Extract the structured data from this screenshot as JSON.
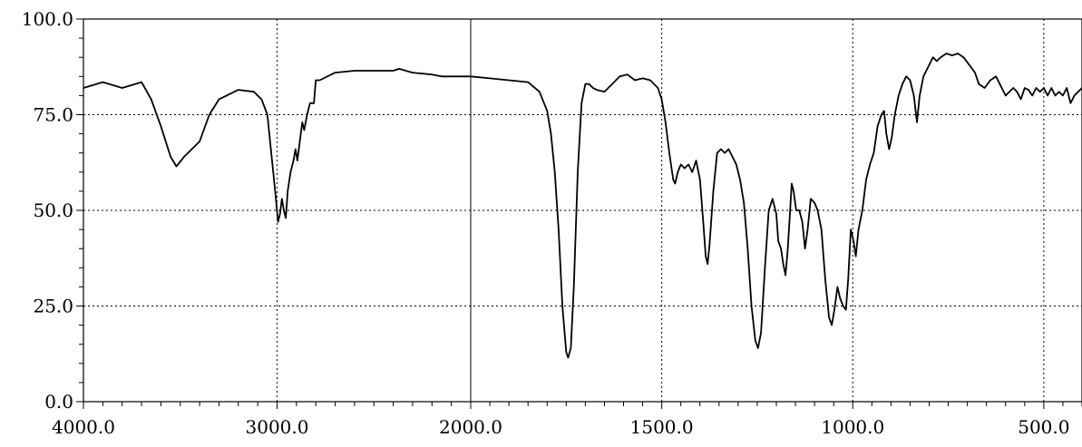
{
  "chart_data": {
    "type": "line",
    "title": "",
    "xlabel": "",
    "ylabel": "",
    "xlim": [
      4000,
      400
    ],
    "ylim": [
      0,
      100
    ],
    "x_scale": "piecewise: 4000-2000 and 2000-400 (2x expanded below 2000)",
    "grid": true,
    "x_ticks": [
      4000,
      3000,
      2000,
      1500,
      1000,
      500
    ],
    "x_tick_labels": [
      "4000.0",
      "3000.0",
      "2000.0",
      "1500.0",
      "1000.0",
      "500.0"
    ],
    "y_ticks": [
      0,
      25,
      50,
      75,
      100
    ],
    "y_tick_labels": [
      "0.0",
      "25.0",
      "50.0",
      "75.0",
      "100.0"
    ],
    "series": [
      {
        "color": "#000000",
        "points": [
          [
            4000,
            82
          ],
          [
            3900,
            83.5
          ],
          [
            3800,
            82
          ],
          [
            3700,
            83.5
          ],
          [
            3650,
            79
          ],
          [
            3600,
            72
          ],
          [
            3550,
            64
          ],
          [
            3520,
            61.5
          ],
          [
            3480,
            64
          ],
          [
            3400,
            68
          ],
          [
            3350,
            75
          ],
          [
            3300,
            79
          ],
          [
            3200,
            81.5
          ],
          [
            3120,
            81
          ],
          [
            3080,
            79
          ],
          [
            3050,
            75
          ],
          [
            3030,
            65
          ],
          [
            3010,
            55
          ],
          [
            2995,
            47
          ],
          [
            2985,
            49
          ],
          [
            2975,
            53
          ],
          [
            2965,
            50
          ],
          [
            2955,
            48
          ],
          [
            2945,
            55
          ],
          [
            2930,
            60
          ],
          [
            2915,
            63
          ],
          [
            2905,
            66
          ],
          [
            2895,
            63
          ],
          [
            2880,
            69
          ],
          [
            2870,
            73
          ],
          [
            2860,
            71
          ],
          [
            2845,
            75
          ],
          [
            2830,
            78
          ],
          [
            2810,
            78
          ],
          [
            2800,
            84
          ],
          [
            2780,
            84
          ],
          [
            2700,
            86
          ],
          [
            2600,
            86.5
          ],
          [
            2500,
            86.5
          ],
          [
            2400,
            86.5
          ],
          [
            2370,
            87
          ],
          [
            2300,
            86
          ],
          [
            2200,
            85.5
          ],
          [
            2150,
            85
          ],
          [
            2100,
            85
          ],
          [
            2000,
            85
          ],
          [
            1950,
            84.5
          ],
          [
            1900,
            84
          ],
          [
            1850,
            83.5
          ],
          [
            1820,
            81
          ],
          [
            1800,
            76
          ],
          [
            1790,
            70
          ],
          [
            1780,
            60
          ],
          [
            1770,
            45
          ],
          [
            1760,
            25
          ],
          [
            1750,
            13
          ],
          [
            1745,
            11.5
          ],
          [
            1738,
            14
          ],
          [
            1730,
            30
          ],
          [
            1720,
            60
          ],
          [
            1710,
            78
          ],
          [
            1700,
            83
          ],
          [
            1690,
            83
          ],
          [
            1680,
            82
          ],
          [
            1670,
            81.5
          ],
          [
            1650,
            81
          ],
          [
            1630,
            83
          ],
          [
            1610,
            85
          ],
          [
            1590,
            85.5
          ],
          [
            1570,
            84
          ],
          [
            1550,
            84.5
          ],
          [
            1530,
            84
          ],
          [
            1510,
            82
          ],
          [
            1500,
            79
          ],
          [
            1490,
            73
          ],
          [
            1480,
            65
          ],
          [
            1470,
            58
          ],
          [
            1465,
            57
          ],
          [
            1458,
            60
          ],
          [
            1450,
            62
          ],
          [
            1440,
            61
          ],
          [
            1430,
            62
          ],
          [
            1420,
            60
          ],
          [
            1410,
            63
          ],
          [
            1400,
            58
          ],
          [
            1390,
            45
          ],
          [
            1385,
            38
          ],
          [
            1380,
            36
          ],
          [
            1375,
            41
          ],
          [
            1365,
            55
          ],
          [
            1355,
            65
          ],
          [
            1345,
            66
          ],
          [
            1335,
            65
          ],
          [
            1325,
            66
          ],
          [
            1315,
            64
          ],
          [
            1305,
            62
          ],
          [
            1295,
            58
          ],
          [
            1285,
            52
          ],
          [
            1275,
            40
          ],
          [
            1265,
            25
          ],
          [
            1255,
            16
          ],
          [
            1248,
            14
          ],
          [
            1240,
            18
          ],
          [
            1230,
            35
          ],
          [
            1220,
            50
          ],
          [
            1210,
            53
          ],
          [
            1200,
            49
          ],
          [
            1195,
            42
          ],
          [
            1188,
            40
          ],
          [
            1182,
            36
          ],
          [
            1176,
            33
          ],
          [
            1170,
            40
          ],
          [
            1165,
            48
          ],
          [
            1160,
            57
          ],
          [
            1155,
            55
          ],
          [
            1148,
            50
          ],
          [
            1140,
            50
          ],
          [
            1132,
            47
          ],
          [
            1125,
            40
          ],
          [
            1118,
            45
          ],
          [
            1110,
            53
          ],
          [
            1100,
            52
          ],
          [
            1092,
            50
          ],
          [
            1082,
            45
          ],
          [
            1072,
            32
          ],
          [
            1062,
            22
          ],
          [
            1055,
            20
          ],
          [
            1048,
            24
          ],
          [
            1040,
            30
          ],
          [
            1033,
            27
          ],
          [
            1025,
            25
          ],
          [
            1018,
            24
          ],
          [
            1012,
            32
          ],
          [
            1005,
            45
          ],
          [
            998,
            42
          ],
          [
            992,
            38
          ],
          [
            985,
            45
          ],
          [
            975,
            50
          ],
          [
            965,
            58
          ],
          [
            955,
            62
          ],
          [
            945,
            65
          ],
          [
            935,
            72
          ],
          [
            925,
            75
          ],
          [
            918,
            76
          ],
          [
            912,
            70
          ],
          [
            905,
            66
          ],
          [
            898,
            69
          ],
          [
            890,
            75
          ],
          [
            880,
            80
          ],
          [
            870,
            83
          ],
          [
            860,
            85
          ],
          [
            850,
            84
          ],
          [
            840,
            80
          ],
          [
            832,
            73
          ],
          [
            825,
            80
          ],
          [
            815,
            85
          ],
          [
            800,
            88
          ],
          [
            790,
            90
          ],
          [
            780,
            89
          ],
          [
            770,
            90
          ],
          [
            755,
            91
          ],
          [
            740,
            90.5
          ],
          [
            725,
            91
          ],
          [
            710,
            90
          ],
          [
            695,
            88
          ],
          [
            680,
            86
          ],
          [
            670,
            83
          ],
          [
            655,
            82
          ],
          [
            640,
            84
          ],
          [
            625,
            85
          ],
          [
            610,
            82
          ],
          [
            600,
            80
          ],
          [
            590,
            81
          ],
          [
            580,
            82
          ],
          [
            570,
            81
          ],
          [
            560,
            79
          ],
          [
            550,
            82
          ],
          [
            540,
            81.5
          ],
          [
            530,
            80
          ],
          [
            520,
            82
          ],
          [
            510,
            81
          ],
          [
            500,
            82
          ],
          [
            490,
            80
          ],
          [
            480,
            82
          ],
          [
            470,
            80
          ],
          [
            460,
            81
          ],
          [
            450,
            80
          ],
          [
            440,
            82
          ],
          [
            430,
            78
          ],
          [
            420,
            80
          ],
          [
            410,
            81
          ],
          [
            400,
            82
          ]
        ]
      }
    ]
  }
}
